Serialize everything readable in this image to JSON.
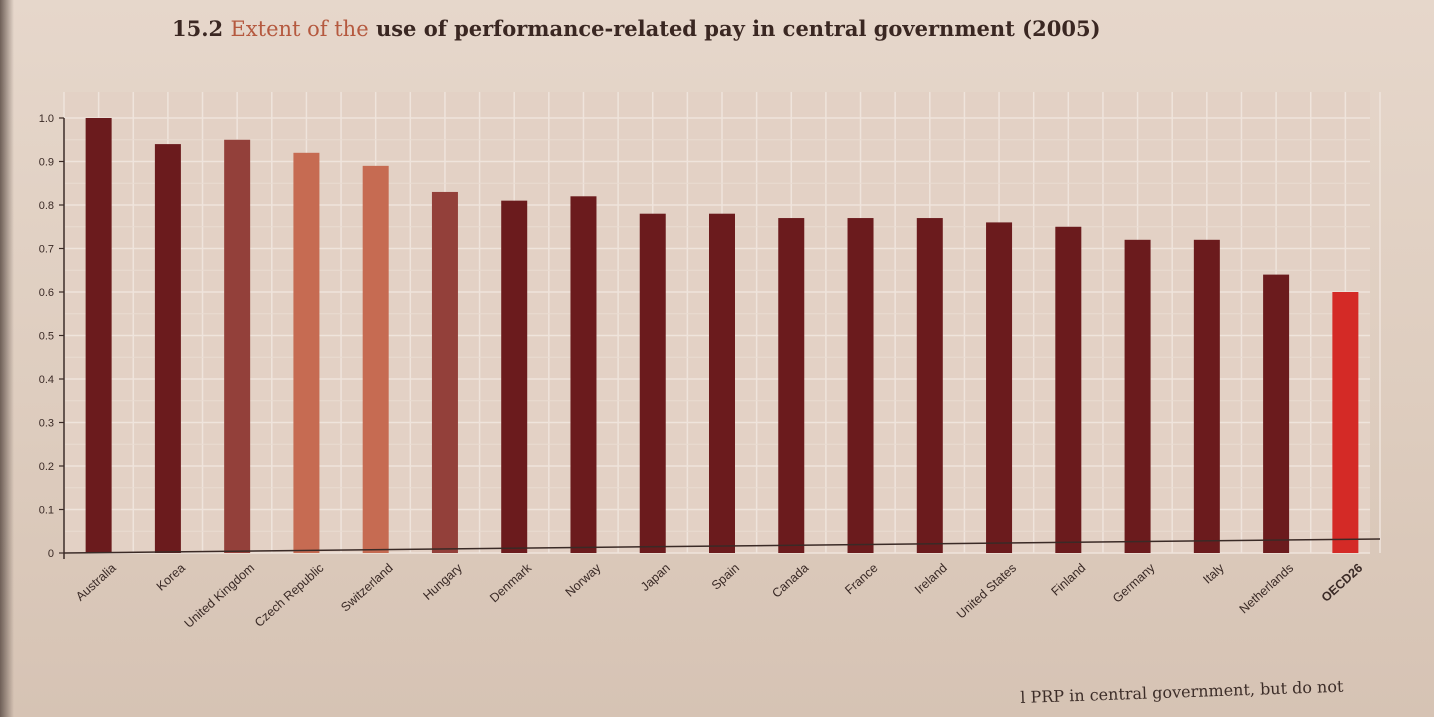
{
  "page": {
    "title_number": "15.2",
    "title_light": "Extent of the",
    "title_bold": "use of performance-related pay in central government (2005)",
    "footer_fragment": "l PRP in central government, but do not"
  },
  "chart_data": {
    "type": "bar",
    "categories": [
      "Australia",
      "Korea",
      "United Kingdom",
      "Czech Republic",
      "Switzerland",
      "Hungary",
      "Denmark",
      "Norway",
      "Japan",
      "Spain",
      "Canada",
      "France",
      "Ireland",
      "United States",
      "Finland",
      "Germany",
      "Italy",
      "Netherlands",
      "OECD26"
    ],
    "values": [
      1.0,
      0.94,
      0.95,
      0.92,
      0.89,
      0.83,
      0.81,
      0.82,
      0.78,
      0.78,
      0.77,
      0.77,
      0.77,
      0.76,
      0.75,
      0.72,
      0.72,
      0.64,
      0.6
    ],
    "y_ticks": [
      "0",
      "0.1",
      "0.2",
      "0.3",
      "0.4",
      "0.5",
      "0.6",
      "0.7",
      "0.8",
      "0.9",
      "1.0"
    ],
    "ylim": [
      0,
      1.0
    ],
    "grid": true,
    "title": "15.2 Extent of the use of performance-related pay in central government (2005)",
    "xlabel": "",
    "ylabel": "",
    "colors": {
      "dark": "#6b1b1d",
      "medium": "#93403a",
      "light": "#c66b52",
      "highlight": "#d42a26"
    },
    "bar_tones": [
      "dark",
      "dark",
      "medium",
      "light",
      "light",
      "medium",
      "dark",
      "dark",
      "dark",
      "dark",
      "dark",
      "dark",
      "dark",
      "dark",
      "dark",
      "dark",
      "dark",
      "dark",
      "highlight"
    ]
  }
}
